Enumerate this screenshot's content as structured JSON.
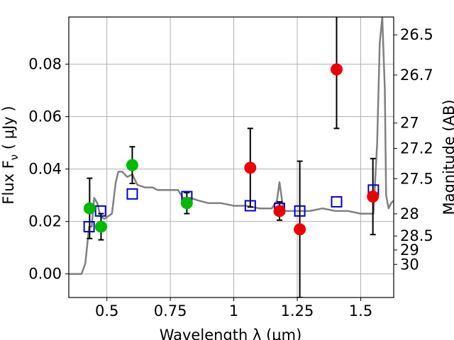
{
  "chart_data": {
    "type": "scatter",
    "xlabel": "Wavelength  λ (μm)",
    "ylabel": "Flux  F",
    "ylabel_sub": "ν",
    "ylabel_unit": "  ( μJy )",
    "ylabel_right": "Magnitude (AB)",
    "xlim": [
      0.35,
      1.63
    ],
    "ylim": [
      -0.009,
      0.098
    ],
    "grid": true,
    "x_ticks": [
      0.5,
      0.75,
      1.0,
      1.25,
      1.5
    ],
    "x_tick_labels": [
      "0.5",
      "0.75",
      "1",
      "1.25",
      "1.5"
    ],
    "y_ticks": [
      0.0,
      0.02,
      0.04,
      0.06,
      0.08
    ],
    "y_tick_labels": [
      "0.00",
      "0.02",
      "0.04",
      "0.06",
      "0.08"
    ],
    "mag_ticks": [
      26.5,
      26.7,
      27,
      27.2,
      27.5,
      28,
      28.5,
      29,
      30
    ],
    "mag_tick_labels": [
      "26.5",
      "26.7",
      "27",
      "27.2",
      "27.5",
      "28",
      "28.5",
      "29",
      "30"
    ],
    "colors": {
      "model": "#808080",
      "model_phot": "#0000cc",
      "detection": "#00bb00",
      "upper_limit": "#ee0000",
      "error_bar": "#000000"
    },
    "series": [
      {
        "type": "line",
        "x": [
          0.35,
          0.4,
          0.415,
          0.43,
          0.44,
          0.45,
          0.462,
          0.475,
          0.49,
          0.505,
          0.52,
          0.535,
          0.545,
          0.56,
          0.58,
          0.6,
          0.62,
          0.65,
          0.68,
          0.7,
          0.72,
          0.75,
          0.78,
          0.8,
          0.83,
          0.86,
          0.9,
          0.95,
          1.0,
          1.05,
          1.1,
          1.15,
          1.17,
          1.18,
          1.19,
          1.2,
          1.25,
          1.3,
          1.35,
          1.4,
          1.45,
          1.5,
          1.55,
          1.565,
          1.575,
          1.585,
          1.595,
          1.6,
          1.61,
          1.62,
          1.63
        ],
        "y": [
          0.0,
          0.0,
          0.004,
          0.018,
          0.018,
          0.029,
          0.027,
          0.022,
          0.021,
          0.022,
          0.023,
          0.035,
          0.039,
          0.039,
          0.037,
          0.038,
          0.034,
          0.033,
          0.033,
          0.032,
          0.032,
          0.032,
          0.032,
          0.029,
          0.029,
          0.028,
          0.027,
          0.027,
          0.026,
          0.026,
          0.025,
          0.025,
          0.028,
          0.035,
          0.028,
          0.024,
          0.024,
          0.024,
          0.025,
          0.024,
          0.024,
          0.023,
          0.023,
          0.05,
          0.088,
          0.098,
          0.07,
          0.03,
          0.025,
          0.027,
          0.028
        ]
      },
      {
        "type": "scatter-square",
        "x": [
          0.43,
          0.475,
          0.6,
          0.815,
          1.065,
          1.18,
          1.26,
          1.405,
          1.55
        ],
        "y": [
          0.018,
          0.024,
          0.0305,
          0.0295,
          0.026,
          0.025,
          0.024,
          0.0275,
          0.032
        ]
      },
      {
        "type": "scatter-detection",
        "x": [
          0.432,
          0.477,
          0.6,
          0.815
        ],
        "y": [
          0.025,
          0.018,
          0.0415,
          0.027
        ],
        "yerr": [
          0.0115,
          0.005,
          0.007,
          0.004
        ]
      },
      {
        "type": "scatter-upper",
        "x": [
          1.065,
          1.18,
          1.26,
          1.405,
          1.548
        ],
        "y": [
          0.0405,
          0.024,
          0.017,
          0.078,
          0.0295
        ],
        "yerr": [
          0.015,
          0.0035,
          0.026,
          0.0225,
          0.0145
        ]
      }
    ]
  }
}
